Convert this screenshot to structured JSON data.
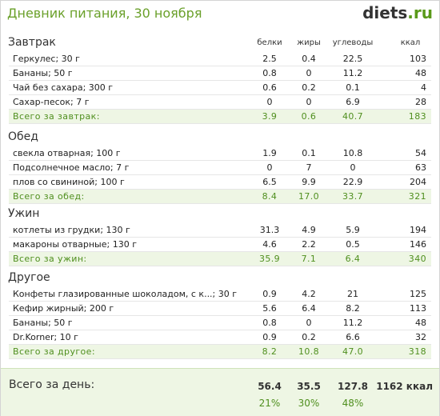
{
  "header": {
    "title": "Дневник питания, 30 ноября",
    "logo_main": "diets",
    "logo_tld": ".ru"
  },
  "columns": {
    "protein": "белки",
    "fat": "жиры",
    "carbs": "углеводы",
    "kcal": "ккал"
  },
  "sections": [
    {
      "title": "Завтрак",
      "items": [
        {
          "name": "Геркулес; 30 г",
          "protein": "2.5",
          "fat": "0.4",
          "carbs": "22.5",
          "kcal": "103"
        },
        {
          "name": "Бананы; 50 г",
          "protein": "0.8",
          "fat": "0",
          "carbs": "11.2",
          "kcal": "48"
        },
        {
          "name": "Чай без сахара; 300 г",
          "protein": "0.6",
          "fat": "0.2",
          "carbs": "0.1",
          "kcal": "4"
        },
        {
          "name": "Сахар-песок; 7 г",
          "protein": "0",
          "fat": "0",
          "carbs": "6.9",
          "kcal": "28"
        }
      ],
      "total": {
        "label": "Всего за завтрак:",
        "protein": "3.9",
        "fat": "0.6",
        "carbs": "40.7",
        "kcal": "183"
      }
    },
    {
      "title": "Обед",
      "items": [
        {
          "name": "свекла отварная; 100 г",
          "protein": "1.9",
          "fat": "0.1",
          "carbs": "10.8",
          "kcal": "54"
        },
        {
          "name": "Подсолнечное масло; 7 г",
          "protein": "0",
          "fat": "7",
          "carbs": "0",
          "kcal": "63"
        },
        {
          "name": "плов со свининой; 100 г",
          "protein": "6.5",
          "fat": "9.9",
          "carbs": "22.9",
          "kcal": "204"
        }
      ],
      "total": {
        "label": "Всего за обед:",
        "protein": "8.4",
        "fat": "17.0",
        "carbs": "33.7",
        "kcal": "321"
      }
    },
    {
      "title": "Ужин",
      "items": [
        {
          "name": "котлеты из грудки; 130 г",
          "protein": "31.3",
          "fat": "4.9",
          "carbs": "5.9",
          "kcal": "194"
        },
        {
          "name": "макароны отварные; 130 г",
          "protein": "4.6",
          "fat": "2.2",
          "carbs": "0.5",
          "kcal": "146"
        }
      ],
      "total": {
        "label": "Всего за ужин:",
        "protein": "35.9",
        "fat": "7.1",
        "carbs": "6.4",
        "kcal": "340"
      }
    },
    {
      "title": "Другое",
      "items": [
        {
          "name": "Конфеты глазированные шоколадом, с к...; 30 г",
          "protein": "0.9",
          "fat": "4.2",
          "carbs": "21",
          "kcal": "125"
        },
        {
          "name": "Кефир жирный; 200 г",
          "protein": "5.6",
          "fat": "6.4",
          "carbs": "8.2",
          "kcal": "113"
        },
        {
          "name": "Бананы; 50 г",
          "protein": "0.8",
          "fat": "0",
          "carbs": "11.2",
          "kcal": "48"
        },
        {
          "name": "Dr.Korner; 10 г",
          "protein": "0.9",
          "fat": "0.2",
          "carbs": "6.6",
          "kcal": "32"
        }
      ],
      "total": {
        "label": "Всего за другое:",
        "protein": "8.2",
        "fat": "10.8",
        "carbs": "47.0",
        "kcal": "318"
      }
    }
  ],
  "day_total": {
    "label": "Всего за день:",
    "protein": "56.4",
    "fat": "35.5",
    "carbs": "127.8",
    "kcal": "1162 ккал",
    "protein_pct": "21%",
    "fat_pct": "30%",
    "carbs_pct": "48%"
  },
  "colors": {
    "accent": "#6aa02a",
    "total_bg": "#eef6e4"
  }
}
